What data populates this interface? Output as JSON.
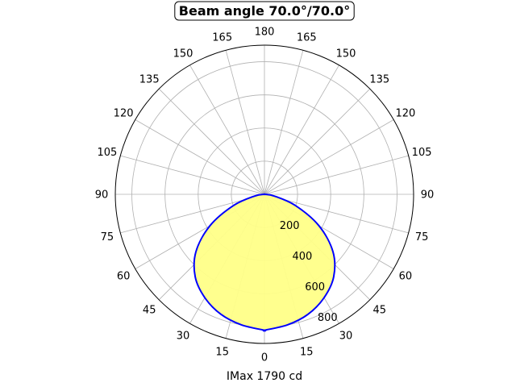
{
  "chart_data": {
    "type": "polar-line",
    "title": "Beam angle 70.0°/70.0°",
    "xlabel": "IMax 1790 cd",
    "theta_unit": "degrees",
    "theta_zero_direction": "bottom",
    "angle_ticks": [
      "0",
      "15",
      "30",
      "45",
      "60",
      "75",
      "90",
      "105",
      "120",
      "135",
      "150",
      "165",
      "180",
      "165",
      "150",
      "135",
      "120",
      "105",
      "90",
      "75",
      "60",
      "45",
      "30",
      "15"
    ],
    "radial_ticks": [
      "200",
      "400",
      "600",
      "800"
    ],
    "r_max": 900,
    "grid": true,
    "series": [
      {
        "theta": [
          0,
          10,
          20,
          30,
          40,
          50,
          60,
          70,
          80,
          90
        ],
        "values": [
          820,
          800,
          770,
          720,
          650,
          540,
          380,
          200,
          60,
          0
        ],
        "line_color": "#0000ff",
        "fill_color": "#ffff88"
      }
    ]
  }
}
